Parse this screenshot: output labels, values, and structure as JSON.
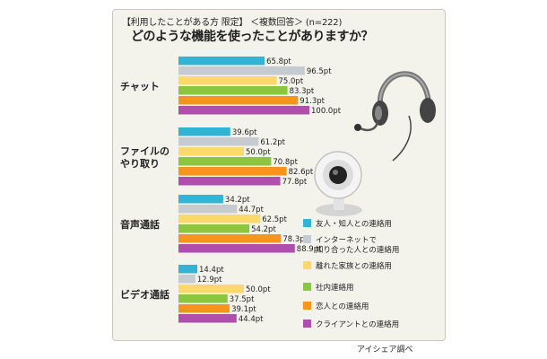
{
  "header": {
    "subtitle": "【利用したことがある方 限定】 ＜複数回答＞ (n=222)",
    "title": "どのような機能を使ったことがありますか？"
  },
  "source": "アイシェア調べ",
  "chart_data": {
    "type": "bar",
    "orientation": "horizontal",
    "categories": [
      [
        "チャット"
      ],
      [
        "ファイルの",
        "やり取り"
      ],
      [
        "音声通話"
      ],
      [
        "ビデオ通話"
      ]
    ],
    "value_suffix": "pt",
    "xlim": [
      0,
      100
    ],
    "legend_position": "right",
    "grid": false,
    "series": [
      {
        "name": "友人・知人との連絡用",
        "lines": [
          "友人・知人との連絡用"
        ],
        "color": "#33b4d6",
        "values": [
          65.8,
          39.6,
          34.2,
          14.4
        ]
      },
      {
        "name": "インターネットで知り合った人との連絡用",
        "lines": [
          "インターネットで",
          "知り合った人との連絡用"
        ],
        "color": "#c6cbd2",
        "values": [
          96.5,
          61.2,
          44.7,
          12.9
        ]
      },
      {
        "name": "離れた家族との連絡用",
        "lines": [
          "離れた家族との連絡用"
        ],
        "color": "#fbd86b",
        "values": [
          75.0,
          50.0,
          62.5,
          50.0
        ]
      },
      {
        "name": "社内連絡用",
        "lines": [
          "社内連絡用"
        ],
        "color": "#8cc63f",
        "values": [
          83.3,
          70.8,
          54.2,
          37.5
        ]
      },
      {
        "name": "恋人との連絡用",
        "lines": [
          "恋人との連絡用"
        ],
        "color": "#f7941d",
        "values": [
          91.3,
          82.6,
          78.3,
          39.1
        ]
      },
      {
        "name": "クライアントとの連絡用",
        "lines": [
          "クライアントとの連絡用"
        ],
        "color": "#b04eae",
        "values": [
          100.0,
          77.8,
          88.9,
          44.4
        ]
      }
    ]
  },
  "decor": {
    "headset": "headset-icon",
    "webcam": "webcam-icon"
  }
}
